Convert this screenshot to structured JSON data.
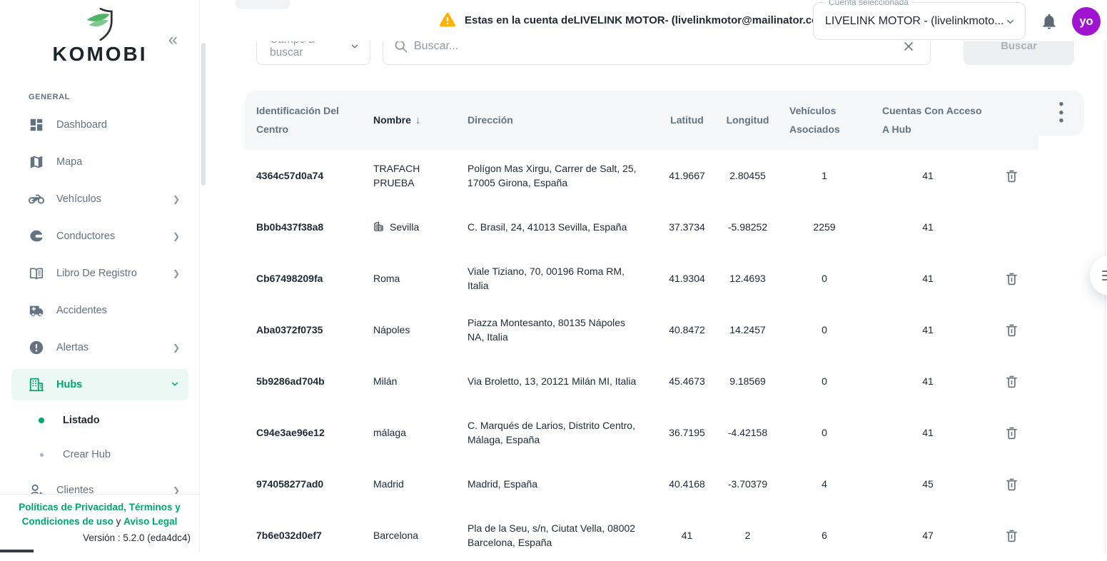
{
  "colors": {
    "primary_green": "#00A76F",
    "warning_yellow": "#FFB300",
    "avatar_purple": "#A013D0",
    "header_bg": "#F4F6F8",
    "text_dark": "#212B36",
    "text_gray": "#637381"
  },
  "sidebar": {
    "logo_text": "KOMOBI",
    "section_label": "GENERAL",
    "nav": [
      {
        "label": "Dashboard",
        "icon": "dashboard",
        "chevron": "",
        "active": false
      },
      {
        "label": "Mapa",
        "icon": "map",
        "chevron": "",
        "active": false
      },
      {
        "label": "Vehículos",
        "icon": "motorcycle",
        "chevron": "right",
        "active": false
      },
      {
        "label": "Conductores",
        "icon": "helmet",
        "chevron": "right",
        "active": false
      },
      {
        "label": "Libro De Registro",
        "icon": "book",
        "chevron": "right",
        "active": false
      },
      {
        "label": "Accidentes",
        "icon": "ambulance",
        "chevron": "",
        "active": false
      },
      {
        "label": "Alertas",
        "icon": "alert",
        "chevron": "right",
        "active": false
      },
      {
        "label": "Hubs",
        "icon": "building",
        "chevron": "down",
        "active": true
      }
    ],
    "sub_nav": [
      {
        "label": "Listado",
        "active": true
      },
      {
        "label": "Crear Hub",
        "active": false
      }
    ],
    "nav_after": [
      {
        "label": "Clientes",
        "icon": "clients",
        "chevron": "right",
        "active": false
      }
    ],
    "footer": {
      "privacy_link": "Políticas de Privacidad, Términos y Condiciones de uso",
      "conjunction": " y ",
      "legal_link": "Aviso Legal",
      "version": "Versión : 5.2.0 (eda4dc4)"
    }
  },
  "topbar": {
    "warning_text": "Estas en la cuenta deLIVELINK MOTOR- (livelinkmotor@mailinator.com)",
    "account_label": "Cuenta seleccionada",
    "account_value": "LIVELINK MOTOR - (livelinkmoto...",
    "avatar_text": "yo"
  },
  "search": {
    "field_select_label": "Campo a buscar",
    "input_placeholder": "Buscar...",
    "button_label": "Buscar"
  },
  "table": {
    "columns": [
      "Identificación Del Centro",
      "Nombre",
      "Dirección",
      "Latitud",
      "Longitud",
      "Vehículos Asociados",
      "Cuentas Con Acceso A Hub"
    ],
    "sorted_column": "Nombre",
    "sort_direction": "desc",
    "rows": [
      {
        "id": "4364c57d0a74",
        "nombre": "TRAFACH PRUEBA",
        "building": false,
        "direccion": "Polígon Mas Xirgu, Carrer de Salt, 25, 17005 Girona, España",
        "latitud": "41.9667",
        "longitud": "2.80455",
        "vehiculos": "1",
        "cuentas": "41",
        "deletable": true
      },
      {
        "id": "Bb0b437f38a8",
        "nombre": "Sevilla",
        "building": true,
        "direccion": "C. Brasil, 24, 41013 Sevilla, España",
        "latitud": "37.3734",
        "longitud": "-5.98252",
        "vehiculos": "2259",
        "cuentas": "41",
        "deletable": false
      },
      {
        "id": "Cb67498209fa",
        "nombre": "Roma",
        "building": false,
        "direccion": "Viale Tiziano, 70, 00196 Roma RM, Italia",
        "latitud": "41.9304",
        "longitud": "12.4693",
        "vehiculos": "0",
        "cuentas": "41",
        "deletable": true
      },
      {
        "id": "Aba0372f0735",
        "nombre": "Nápoles",
        "building": false,
        "direccion": "Piazza Montesanto, 80135 Nápoles NA, Italia",
        "latitud": "40.8472",
        "longitud": "14.2457",
        "vehiculos": "0",
        "cuentas": "41",
        "deletable": true
      },
      {
        "id": "5b9286ad704b",
        "nombre": "Milán",
        "building": false,
        "direccion": "Via Broletto, 13, 20121 Milán MI, Italia",
        "latitud": "45.4673",
        "longitud": "9.18569",
        "vehiculos": "0",
        "cuentas": "41",
        "deletable": true
      },
      {
        "id": "C94e3ae96e12",
        "nombre": "málaga",
        "building": false,
        "direccion": "C. Marqués de Larios, Distrito Centro, Málaga, España",
        "latitud": "36.7195",
        "longitud": "-4.42158",
        "vehiculos": "0",
        "cuentas": "41",
        "deletable": true
      },
      {
        "id": "974058277ad0",
        "nombre": "Madrid",
        "building": false,
        "direccion": "Madrid, España",
        "latitud": "40.4168",
        "longitud": "-3.70379",
        "vehiculos": "4",
        "cuentas": "45",
        "deletable": true
      },
      {
        "id": "7b6e032d0ef7",
        "nombre": "Barcelona",
        "building": false,
        "direccion": "Pla de la Seu, s/n, Ciutat Vella, 08002 Barcelona, España",
        "latitud": "41",
        "longitud": "2",
        "vehiculos": "6",
        "cuentas": "47",
        "deletable": true
      }
    ]
  }
}
